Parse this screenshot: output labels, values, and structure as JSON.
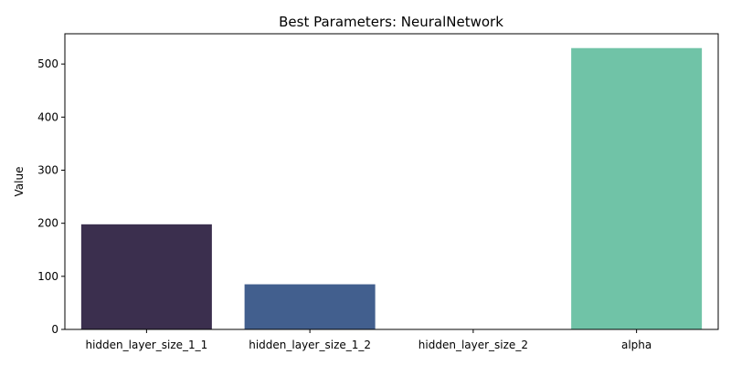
{
  "chart_data": {
    "type": "bar",
    "title": "Best Parameters: NeuralNetwork",
    "xlabel": "",
    "ylabel": "Value",
    "categories": [
      "hidden_layer_size_1_1",
      "hidden_layer_size_1_2",
      "hidden_layer_size_2",
      "alpha"
    ],
    "values": [
      198,
      85,
      0,
      530
    ],
    "colors": [
      "#3b2f4e",
      "#425f8e",
      "#4a8a99",
      "#70c3a7"
    ],
    "ylim": [
      0,
      557
    ],
    "yticks": [
      0,
      100,
      200,
      300,
      400,
      500
    ],
    "grid": false,
    "legend": "none"
  }
}
